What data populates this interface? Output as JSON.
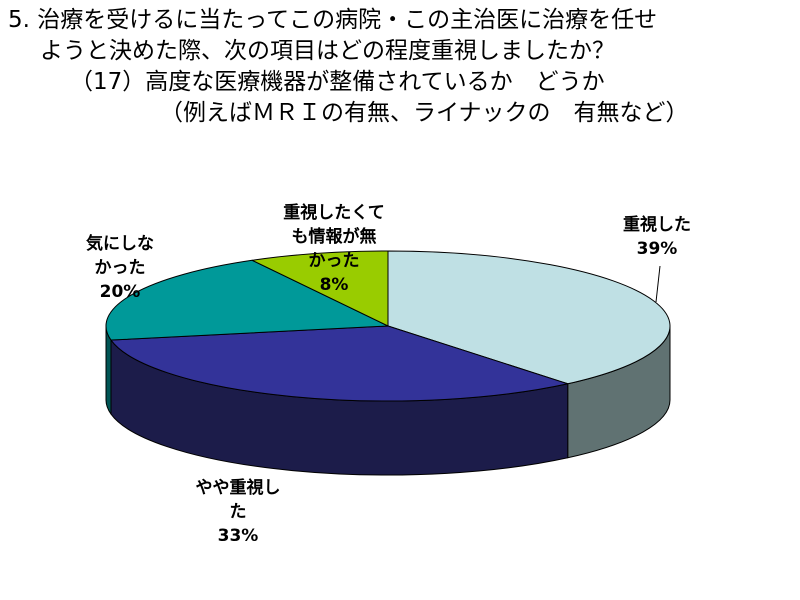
{
  "title_lines": [
    "5. 治療を受けるに当たってこの病院・この主治医に治療を任せ",
    "ようと決めた際、次の項目はどの程度重視しましたか？",
    "（17）高度な医療機器が整備されているか　どうか",
    "（例えばＭＲＩの有無、ライナックの　有無など）"
  ],
  "chart_data": {
    "type": "pie",
    "style": "3d",
    "title": "",
    "categories": [
      "重視した",
      "やや重視した",
      "気にしなかった",
      "重視したくても情報が無かった"
    ],
    "values": [
      39,
      33,
      20,
      8
    ],
    "unit": "%",
    "colors": {
      "top": [
        "#BFE0E4",
        "#333399",
        "#009999",
        "#99CC00"
      ],
      "side": [
        "#607272",
        "#1C1C4A",
        "#005555",
        "#5A7800"
      ]
    },
    "labels": [
      {
        "lines": [
          "重視した"
        ],
        "pct": "39%"
      },
      {
        "lines": [
          "やや重視し",
          "た"
        ],
        "pct": "33%"
      },
      {
        "lines": [
          "気にしな",
          "かった"
        ],
        "pct": "20%"
      },
      {
        "lines": [
          "重視したくて",
          "も情報が無",
          "かった"
        ],
        "pct": "8%"
      }
    ]
  }
}
